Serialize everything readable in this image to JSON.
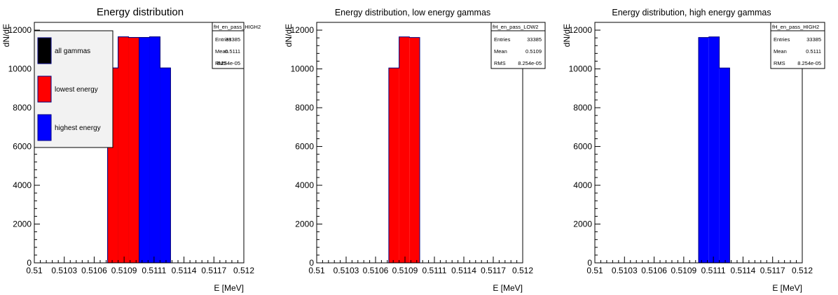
{
  "chart_data": [
    {
      "type": "bar",
      "title": "Energy distribution",
      "xlabel": "E [MeV]",
      "ylabel": "dN/dE",
      "xlim": [
        0.51,
        0.512
      ],
      "ylim": [
        0,
        12400
      ],
      "xticks": [
        "0.51",
        "0.5103",
        "0.5106",
        "0.5109",
        "0.5111",
        "0.5114",
        "0.5117",
        "0.512"
      ],
      "yticks": [
        "0",
        "2000",
        "4000",
        "6000",
        "8000",
        "10000",
        "12000"
      ],
      "bin_edges": [
        0.51,
        0.5101,
        0.5102,
        0.5103,
        0.5104,
        0.5105,
        0.5106,
        0.5107,
        0.5108,
        0.5109,
        0.511,
        0.5111,
        0.5112,
        0.5113,
        0.5114,
        0.5115,
        0.5116,
        0.5117,
        0.5118,
        0.5119,
        0.512
      ],
      "series": [
        {
          "name": "all gammas",
          "color": "#000000",
          "values": [
            0,
            0,
            0,
            0,
            0,
            0,
            0,
            10050,
            11650,
            11620,
            11620,
            11650,
            10050,
            0,
            0,
            0,
            0,
            0,
            0,
            0
          ]
        },
        {
          "name": "lowest energy",
          "color": "#ff0000",
          "values": [
            0,
            0,
            0,
            0,
            0,
            0,
            0,
            10050,
            11650,
            11620,
            0,
            0,
            0,
            0,
            0,
            0,
            0,
            0,
            0,
            0
          ]
        },
        {
          "name": "highest energy",
          "color": "#0000ff",
          "values": [
            0,
            0,
            0,
            0,
            0,
            0,
            0,
            0,
            0,
            0,
            11620,
            11650,
            10050,
            0,
            0,
            0,
            0,
            0,
            0,
            0
          ]
        }
      ],
      "stats": {
        "name": "fH_en_pass_HIGH2",
        "rows": [
          [
            "Entries",
            "33385"
          ],
          [
            "Mean",
            "0.5111"
          ],
          [
            "RMS",
            "8.254e-05"
          ]
        ]
      },
      "legend": "top-left"
    },
    {
      "type": "bar",
      "title": "Energy distribution, low energy gammas",
      "xlabel": "E [MeV]",
      "ylabel": "dN/dE",
      "xlim": [
        0.51,
        0.512
      ],
      "ylim": [
        0,
        12400
      ],
      "xticks": [
        "0.51",
        "0.5103",
        "0.5106",
        "0.5109",
        "0.5111",
        "0.5114",
        "0.5117",
        "0.512"
      ],
      "yticks": [
        "0",
        "2000",
        "4000",
        "6000",
        "8000",
        "10000",
        "12000"
      ],
      "bin_edges": [
        0.51,
        0.5101,
        0.5102,
        0.5103,
        0.5104,
        0.5105,
        0.5106,
        0.5107,
        0.5108,
        0.5109,
        0.511,
        0.5111,
        0.5112,
        0.5113,
        0.5114,
        0.5115,
        0.5116,
        0.5117,
        0.5118,
        0.5119,
        0.512
      ],
      "series": [
        {
          "color": "#ff0000",
          "values": [
            0,
            0,
            0,
            0,
            0,
            0,
            0,
            10050,
            11650,
            11620,
            0,
            0,
            0,
            0,
            0,
            0,
            0,
            0,
            0,
            0
          ]
        }
      ],
      "stats": {
        "name": "fH_en_pass_LOW2",
        "rows": [
          [
            "Entries",
            "33385"
          ],
          [
            "Mean",
            "0.5109"
          ],
          [
            "RMS",
            "8.254e-05"
          ]
        ]
      }
    },
    {
      "type": "bar",
      "title": "Energy distribution, high energy gammas",
      "xlabel": "E [MeV]",
      "ylabel": "dN/dE",
      "xlim": [
        0.51,
        0.512
      ],
      "ylim": [
        0,
        12400
      ],
      "xticks": [
        "0.51",
        "0.5103",
        "0.5106",
        "0.5109",
        "0.5111",
        "0.5114",
        "0.5117",
        "0.512"
      ],
      "yticks": [
        "0",
        "2000",
        "4000",
        "6000",
        "8000",
        "10000",
        "12000"
      ],
      "bin_edges": [
        0.51,
        0.5101,
        0.5102,
        0.5103,
        0.5104,
        0.5105,
        0.5106,
        0.5107,
        0.5108,
        0.5109,
        0.511,
        0.5111,
        0.5112,
        0.5113,
        0.5114,
        0.5115,
        0.5116,
        0.5117,
        0.5118,
        0.5119,
        0.512
      ],
      "series": [
        {
          "color": "#0000ff",
          "values": [
            0,
            0,
            0,
            0,
            0,
            0,
            0,
            0,
            0,
            0,
            11620,
            11650,
            10050,
            0,
            0,
            0,
            0,
            0,
            0,
            0
          ]
        }
      ],
      "stats": {
        "name": "fH_en_pass_HIGH2",
        "rows": [
          [
            "Entries",
            "33385"
          ],
          [
            "Mean",
            "0.5111"
          ],
          [
            "RMS",
            "8.254e-05"
          ]
        ]
      }
    }
  ]
}
